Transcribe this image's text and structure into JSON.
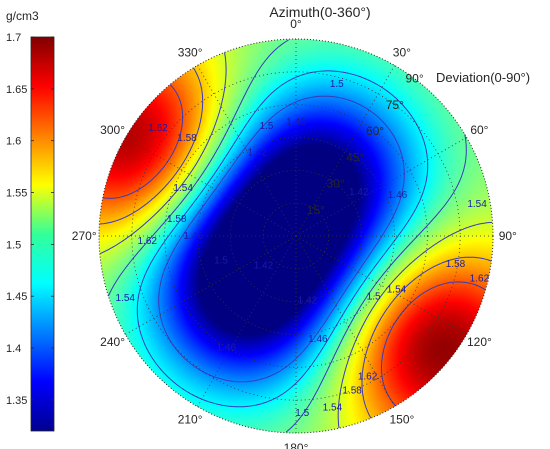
{
  "chart_data": {
    "type": "heatmap",
    "projection": "polar",
    "title": "Azimuth(0-360°)",
    "radial_axis_title": "Deviation(0-90°)",
    "colorbar": {
      "unit": "g/cm3",
      "range": [
        1.32,
        1.7
      ],
      "ticks": [
        "1.35",
        "1.4",
        "1.45",
        "1.5",
        "1.55",
        "1.6",
        "1.65",
        "1.7"
      ],
      "colormap": "jet"
    },
    "azimuth_tick_labels": [
      "0°",
      "30°",
      "60°",
      "90°",
      "120°",
      "150°",
      "180°",
      "210°",
      "240°",
      "270°",
      "300°",
      "330°"
    ],
    "deviation_tick_labels": [
      "15°",
      "30°",
      "45°",
      "60°",
      "75°",
      "90°"
    ],
    "deviation_range": [
      0,
      90
    ],
    "grid": true,
    "contour_levels": [
      1.42,
      1.46,
      1.5,
      1.54,
      1.58,
      1.62
    ],
    "contour_labels": [
      {
        "text": "1.5",
        "azimuth": 15,
        "deviation": 72
      },
      {
        "text": "1.46",
        "azimuth": 0,
        "deviation": 52
      },
      {
        "text": "1.42",
        "azimuth": 335,
        "deviation": 42
      },
      {
        "text": "1.42",
        "azimuth": 55,
        "deviation": 35
      },
      {
        "text": "1.46",
        "azimuth": 68,
        "deviation": 50
      },
      {
        "text": "1.54",
        "azimuth": 80,
        "deviation": 84
      },
      {
        "text": "1.58",
        "azimuth": 100,
        "deviation": 74
      },
      {
        "text": "1.62",
        "azimuth": 103,
        "deviation": 86
      },
      {
        "text": "1.54",
        "azimuth": 118,
        "deviation": 52
      },
      {
        "text": "1.5",
        "azimuth": 128,
        "deviation": 45
      },
      {
        "text": "1.62",
        "azimuth": 153,
        "deviation": 72
      },
      {
        "text": "1.58",
        "azimuth": 160,
        "deviation": 75
      },
      {
        "text": "1.54",
        "azimuth": 168,
        "deviation": 80
      },
      {
        "text": "1.5",
        "azimuth": 178,
        "deviation": 81
      },
      {
        "text": "1.42",
        "azimuth": 170,
        "deviation": 30
      },
      {
        "text": "1.46",
        "azimuth": 168,
        "deviation": 48
      },
      {
        "text": "1.46",
        "azimuth": 212,
        "deviation": 60
      },
      {
        "text": "1.42",
        "azimuth": 228,
        "deviation": 20
      },
      {
        "text": "1.5",
        "azimuth": 252,
        "deviation": 36
      },
      {
        "text": "1.54",
        "azimuth": 250,
        "deviation": 83
      },
      {
        "text": "1.46",
        "azimuth": 270,
        "deviation": 47
      },
      {
        "text": "1.58",
        "azimuth": 278,
        "deviation": 55
      },
      {
        "text": "1.62",
        "azimuth": 268,
        "deviation": 68
      },
      {
        "text": "1.54",
        "azimuth": 293,
        "deviation": 56
      },
      {
        "text": "1.58",
        "azimuth": 312,
        "deviation": 67
      },
      {
        "text": "1.62",
        "azimuth": 308,
        "deviation": 80
      },
      {
        "text": "1.5",
        "azimuth": 345,
        "deviation": 52
      }
    ],
    "density_field_centers": [
      {
        "azimuth": 300,
        "deviation": 82,
        "value": 1.7
      },
      {
        "azimuth": 128,
        "deviation": 82,
        "value": 1.7
      },
      {
        "azimuth": 25,
        "deviation": 28,
        "value": 1.33
      },
      {
        "azimuth": 250,
        "deviation": 22,
        "value": 1.36
      },
      {
        "azimuth": 215,
        "deviation": 40,
        "value": 1.4
      }
    ]
  }
}
